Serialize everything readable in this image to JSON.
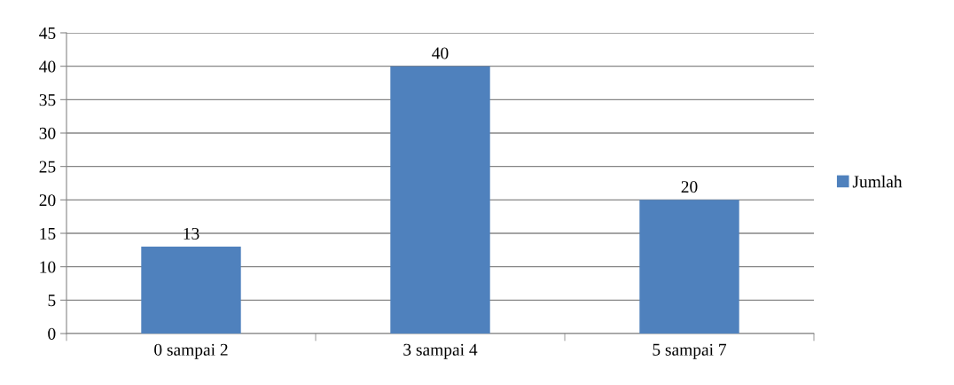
{
  "chart_data": {
    "type": "bar",
    "categories": [
      "0 sampai 2",
      "3 sampai 4",
      "5 sampai 7"
    ],
    "series": [
      {
        "name": "Jumlah",
        "color": "#4f81bd",
        "values": [
          13,
          40,
          20
        ]
      }
    ],
    "ylim": [
      0,
      45
    ],
    "yticks": [
      0,
      5,
      10,
      15,
      20,
      25,
      30,
      35,
      40,
      45
    ],
    "grid": "y",
    "legend": "right",
    "data_labels": true
  }
}
